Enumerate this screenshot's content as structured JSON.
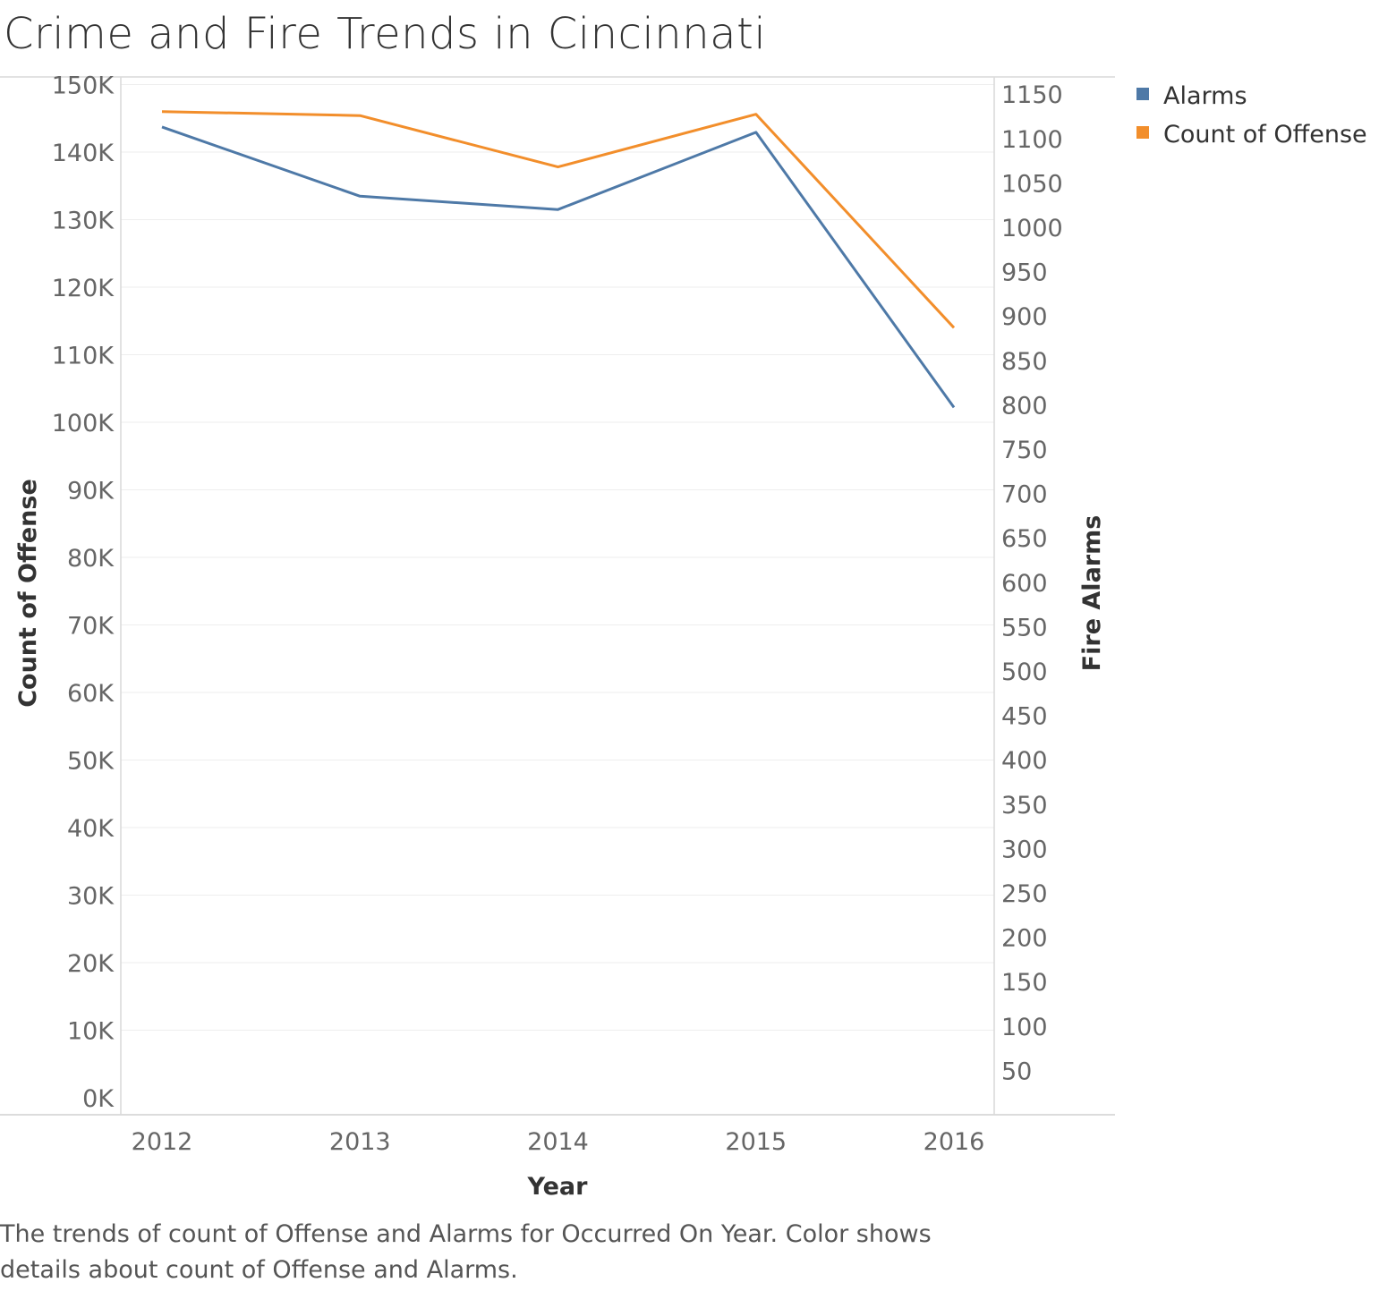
{
  "chart_data": {
    "type": "line",
    "title": "Crime and Fire Trends in Cincinnati",
    "caption": "The trends of count of Offense and Alarms for Occurred On Year.  Color shows details about count of Offense and Alarms.",
    "xlabel": "Year",
    "ylabel_left": "Count of Offense",
    "ylabel_right": "Fire Alarms",
    "categories": [
      "2012",
      "2013",
      "2014",
      "2015",
      "2016"
    ],
    "left_axis": {
      "min": 0,
      "max": 152000,
      "ticks": [
        0,
        10000,
        20000,
        30000,
        40000,
        50000,
        60000,
        70000,
        80000,
        90000,
        100000,
        110000,
        120000,
        130000,
        140000,
        150000
      ],
      "tick_labels": [
        "0K",
        "10K",
        "20K",
        "30K",
        "40K",
        "50K",
        "60K",
        "70K",
        "80K",
        "90K",
        "100K",
        "110K",
        "120K",
        "130K",
        "140K",
        "150K"
      ]
    },
    "right_axis": {
      "min": 0,
      "max": 1165,
      "ticks": [
        50,
        100,
        150,
        200,
        250,
        300,
        350,
        400,
        450,
        500,
        550,
        600,
        650,
        700,
        750,
        800,
        850,
        900,
        950,
        1000,
        1050,
        1100,
        1150
      ],
      "tick_labels": [
        "50",
        "100",
        "150",
        "200",
        "250",
        "300",
        "350",
        "400",
        "450",
        "500",
        "550",
        "600",
        "650",
        "700",
        "750",
        "800",
        "850",
        "900",
        "950",
        "1000",
        "1050",
        "1100",
        "1150"
      ]
    },
    "series": [
      {
        "name": "Alarms",
        "axis": "right",
        "color": "#4e79a7",
        "values": [
          1113,
          1035,
          1020,
          1107,
          797
        ]
      },
      {
        "name": "Count of Offense",
        "axis": "left",
        "color": "#f28e2b",
        "values": [
          146000,
          145400,
          137800,
          145600,
          114000
        ]
      }
    ],
    "grid": true,
    "legend_position": "top-right"
  }
}
